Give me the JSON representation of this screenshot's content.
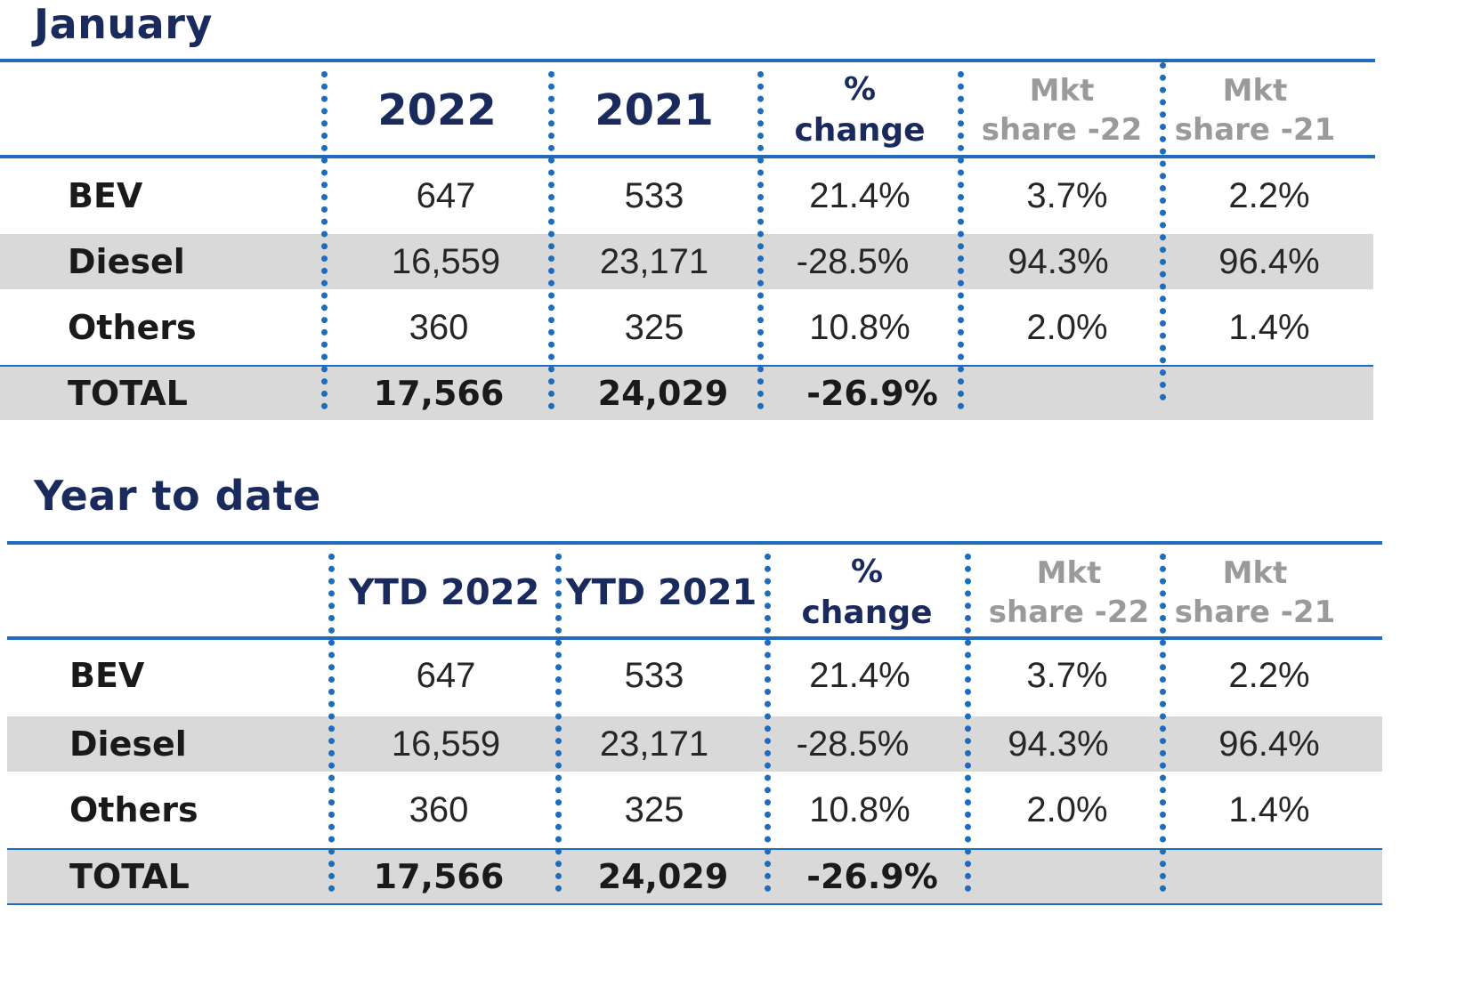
{
  "chart_data": [
    {
      "type": "table",
      "title": "January",
      "columns": [
        "",
        "2022",
        "2021",
        "% change",
        "Mkt share -22",
        "Mkt share -21"
      ],
      "header": {
        "col1": "2022",
        "col2": "2021",
        "pct_line1": "%",
        "pct_line2": "change",
        "mkt22_line1": "Mkt",
        "mkt22_line2": "share -22",
        "mkt21_line1": "Mkt",
        "mkt21_line2": "share -21"
      },
      "rows": [
        {
          "label": "BEV",
          "v1": "647",
          "v2": "533",
          "pct": "21.4%",
          "s22": "3.7%",
          "s21": "2.2%"
        },
        {
          "label": "Diesel",
          "v1": "16,559",
          "v2": "23,171",
          "pct": "-28.5%",
          "s22": "94.3%",
          "s21": "96.4%"
        },
        {
          "label": "Others",
          "v1": "360",
          "v2": "325",
          "pct": "10.8%",
          "s22": "2.0%",
          "s21": "1.4%"
        }
      ],
      "total": {
        "label": "TOTAL",
        "v1": "17,566",
        "v2": "24,029",
        "pct": "-26.9%",
        "s22": "",
        "s21": ""
      }
    },
    {
      "type": "table",
      "title": "Year to date",
      "columns": [
        "",
        "YTD 2022",
        "YTD 2021",
        "% change",
        "Mkt share -22",
        "Mkt share -21"
      ],
      "header": {
        "col1": "YTD 2022",
        "col2": "YTD 2021",
        "pct_line1": "%",
        "pct_line2": "change",
        "mkt22_line1": "Mkt",
        "mkt22_line2": "share -22",
        "mkt21_line1": "Mkt",
        "mkt21_line2": "share -21"
      },
      "rows": [
        {
          "label": "BEV",
          "v1": "647",
          "v2": "533",
          "pct": "21.4%",
          "s22": "3.7%",
          "s21": "2.2%"
        },
        {
          "label": "Diesel",
          "v1": "16,559",
          "v2": "23,171",
          "pct": "-28.5%",
          "s22": "94.3%",
          "s21": "96.4%"
        },
        {
          "label": "Others",
          "v1": "360",
          "v2": "325",
          "pct": "10.8%",
          "s22": "2.0%",
          "s21": "1.4%"
        }
      ],
      "total": {
        "label": "TOTAL",
        "v1": "17,566",
        "v2": "24,029",
        "pct": "-26.9%",
        "s22": "",
        "s21": ""
      }
    }
  ],
  "colors": {
    "rule": "#1f6bbd",
    "title": "#1b2a5c",
    "header_muted": "#9a9a9a",
    "shade": "#d9d9d9"
  }
}
